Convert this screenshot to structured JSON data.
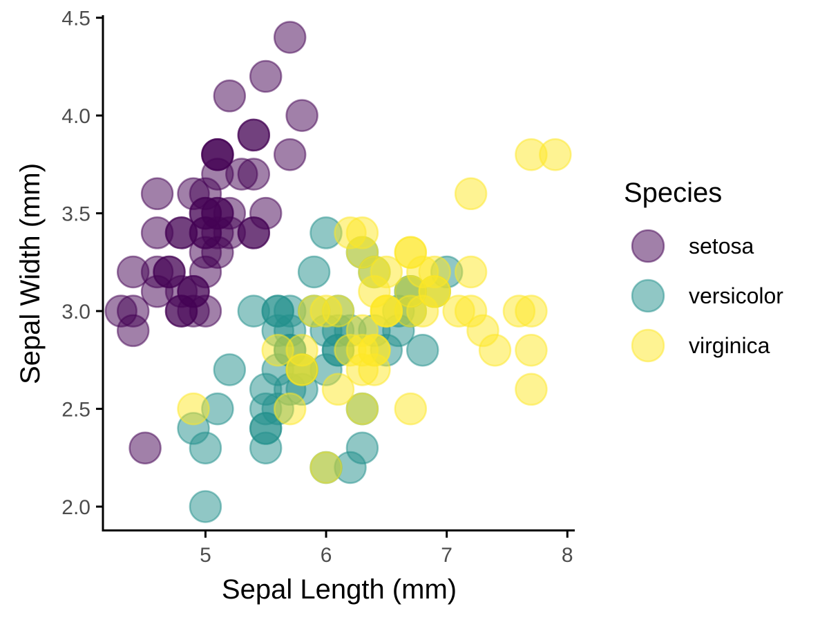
{
  "chart_data": {
    "type": "scatter",
    "xlabel": "Sepal Length (mm)",
    "ylabel": "Sepal Width (mm)",
    "xlim": [
      4.15,
      8.05
    ],
    "ylim": [
      1.88,
      4.52
    ],
    "xticks": [
      "5",
      "6",
      "7",
      "8"
    ],
    "yticks": [
      "2.0",
      "2.5",
      "3.0",
      "3.5",
      "4.0",
      "4.5"
    ],
    "grid": false,
    "legend": {
      "title": "Species",
      "position": "right"
    },
    "series": [
      {
        "name": "setosa",
        "color": "#440154",
        "points": [
          [
            5.1,
            3.5
          ],
          [
            4.9,
            3.0
          ],
          [
            4.7,
            3.2
          ],
          [
            4.6,
            3.1
          ],
          [
            5.0,
            3.6
          ],
          [
            5.4,
            3.9
          ],
          [
            4.6,
            3.4
          ],
          [
            5.0,
            3.4
          ],
          [
            4.4,
            2.9
          ],
          [
            4.9,
            3.1
          ],
          [
            5.4,
            3.7
          ],
          [
            4.8,
            3.4
          ],
          [
            4.8,
            3.0
          ],
          [
            4.3,
            3.0
          ],
          [
            5.8,
            4.0
          ],
          [
            5.7,
            4.4
          ],
          [
            5.4,
            3.9
          ],
          [
            5.1,
            3.5
          ],
          [
            5.7,
            3.8
          ],
          [
            5.1,
            3.8
          ],
          [
            5.4,
            3.4
          ],
          [
            5.1,
            3.7
          ],
          [
            4.6,
            3.6
          ],
          [
            5.1,
            3.3
          ],
          [
            4.8,
            3.4
          ],
          [
            5.0,
            3.0
          ],
          [
            5.0,
            3.4
          ],
          [
            5.2,
            3.5
          ],
          [
            5.2,
            3.4
          ],
          [
            4.7,
            3.2
          ],
          [
            4.8,
            3.1
          ],
          [
            5.4,
            3.4
          ],
          [
            5.2,
            4.1
          ],
          [
            5.5,
            4.2
          ],
          [
            4.9,
            3.1
          ],
          [
            5.0,
            3.2
          ],
          [
            5.5,
            3.5
          ],
          [
            4.9,
            3.6
          ],
          [
            4.4,
            3.0
          ],
          [
            5.1,
            3.4
          ],
          [
            5.0,
            3.5
          ],
          [
            4.5,
            2.3
          ],
          [
            4.4,
            3.2
          ],
          [
            5.0,
            3.5
          ],
          [
            5.1,
            3.8
          ],
          [
            4.8,
            3.0
          ],
          [
            5.1,
            3.8
          ],
          [
            4.6,
            3.2
          ],
          [
            5.3,
            3.7
          ],
          [
            5.0,
            3.3
          ]
        ]
      },
      {
        "name": "versicolor",
        "color": "#21908C",
        "points": [
          [
            7.0,
            3.2
          ],
          [
            6.4,
            3.2
          ],
          [
            6.9,
            3.1
          ],
          [
            5.5,
            2.3
          ],
          [
            6.5,
            2.8
          ],
          [
            5.7,
            2.8
          ],
          [
            6.3,
            3.3
          ],
          [
            4.9,
            2.4
          ],
          [
            6.6,
            2.9
          ],
          [
            5.2,
            2.7
          ],
          [
            5.0,
            2.0
          ],
          [
            5.9,
            3.0
          ],
          [
            6.0,
            2.2
          ],
          [
            6.1,
            2.9
          ],
          [
            5.6,
            2.9
          ],
          [
            6.7,
            3.1
          ],
          [
            5.6,
            3.0
          ],
          [
            5.8,
            2.7
          ],
          [
            6.2,
            2.2
          ],
          [
            5.6,
            2.5
          ],
          [
            5.9,
            3.2
          ],
          [
            6.1,
            2.8
          ],
          [
            6.3,
            2.5
          ],
          [
            6.1,
            2.8
          ],
          [
            6.4,
            2.9
          ],
          [
            6.6,
            3.0
          ],
          [
            6.8,
            2.8
          ],
          [
            6.7,
            3.0
          ],
          [
            6.0,
            2.9
          ],
          [
            5.7,
            2.6
          ],
          [
            5.5,
            2.4
          ],
          [
            5.5,
            2.4
          ],
          [
            5.8,
            2.7
          ],
          [
            6.0,
            2.7
          ],
          [
            5.4,
            3.0
          ],
          [
            6.0,
            3.4
          ],
          [
            6.7,
            3.1
          ],
          [
            6.3,
            2.3
          ],
          [
            5.6,
            3.0
          ],
          [
            5.5,
            2.5
          ],
          [
            5.5,
            2.6
          ],
          [
            6.1,
            3.0
          ],
          [
            5.8,
            2.6
          ],
          [
            5.0,
            2.3
          ],
          [
            5.6,
            2.7
          ],
          [
            5.7,
            3.0
          ],
          [
            5.7,
            2.9
          ],
          [
            6.2,
            2.9
          ],
          [
            5.1,
            2.5
          ],
          [
            5.7,
            2.8
          ]
        ]
      },
      {
        "name": "virginica",
        "color": "#FDE725",
        "points": [
          [
            6.3,
            3.3
          ],
          [
            5.8,
            2.7
          ],
          [
            7.1,
            3.0
          ],
          [
            6.3,
            2.9
          ],
          [
            6.5,
            3.0
          ],
          [
            7.6,
            3.0
          ],
          [
            4.9,
            2.5
          ],
          [
            7.3,
            2.9
          ],
          [
            6.7,
            2.5
          ],
          [
            7.2,
            3.6
          ],
          [
            6.5,
            3.2
          ],
          [
            6.4,
            2.7
          ],
          [
            6.8,
            3.0
          ],
          [
            5.7,
            2.5
          ],
          [
            5.8,
            2.8
          ],
          [
            6.4,
            3.2
          ],
          [
            6.5,
            3.0
          ],
          [
            7.7,
            3.8
          ],
          [
            7.7,
            2.6
          ],
          [
            6.0,
            2.2
          ],
          [
            6.9,
            3.2
          ],
          [
            5.6,
            2.8
          ],
          [
            7.7,
            2.8
          ],
          [
            6.3,
            2.7
          ],
          [
            6.7,
            3.3
          ],
          [
            7.2,
            3.2
          ],
          [
            6.2,
            2.8
          ],
          [
            6.1,
            3.0
          ],
          [
            6.4,
            2.8
          ],
          [
            7.2,
            3.0
          ],
          [
            7.4,
            2.8
          ],
          [
            7.9,
            3.8
          ],
          [
            6.4,
            2.8
          ],
          [
            6.3,
            2.8
          ],
          [
            6.1,
            2.6
          ],
          [
            7.7,
            3.0
          ],
          [
            6.3,
            3.4
          ],
          [
            6.4,
            3.1
          ],
          [
            6.0,
            3.0
          ],
          [
            6.9,
            3.1
          ],
          [
            6.7,
            3.1
          ],
          [
            6.9,
            3.1
          ],
          [
            5.8,
            2.7
          ],
          [
            6.8,
            3.2
          ],
          [
            6.7,
            3.3
          ],
          [
            6.7,
            3.0
          ],
          [
            6.3,
            2.5
          ],
          [
            6.5,
            3.0
          ],
          [
            6.2,
            3.4
          ],
          [
            5.9,
            3.0
          ]
        ]
      }
    ]
  }
}
